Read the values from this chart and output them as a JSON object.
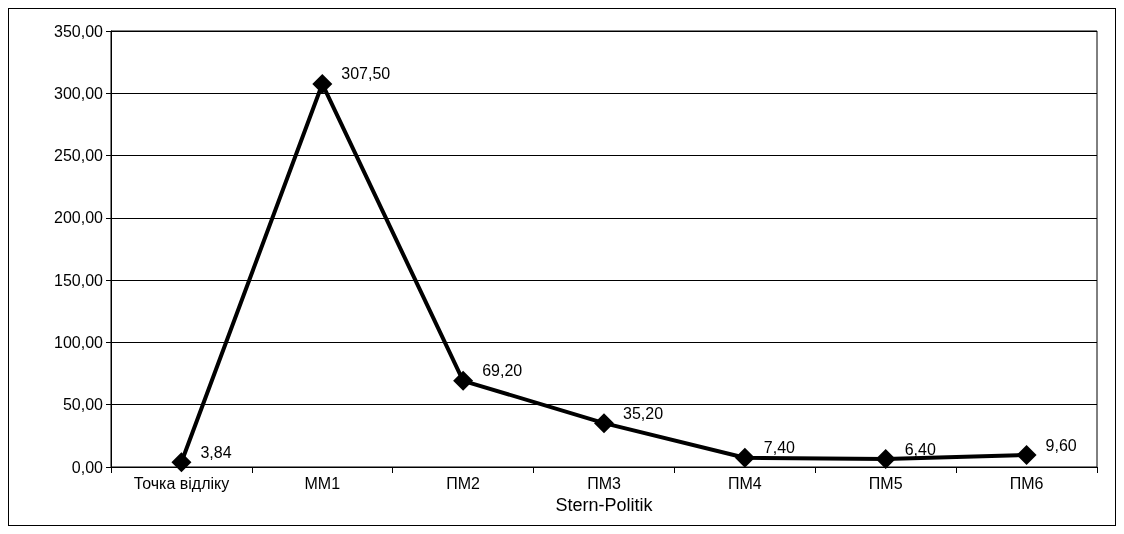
{
  "chart_data": {
    "type": "line",
    "xlabel": "Stern-Politik",
    "categories": [
      "Точка відліку",
      "ММ1",
      "ПМ2",
      "ПМ3",
      "ПМ4",
      "ПМ5",
      "ПМ6"
    ],
    "series": [
      {
        "color": "#000000",
        "values": [
          3.84,
          307.5,
          69.2,
          35.2,
          7.4,
          6.4,
          9.6
        ],
        "value_labels": [
          "3,84",
          "307,50",
          "69,20",
          "35,20",
          "7,40",
          "6,40",
          "9,60"
        ]
      }
    ],
    "ylim": [
      0,
      350
    ],
    "yticks": [
      {
        "value": 0,
        "label": "0,00"
      },
      {
        "value": 50,
        "label": "50,00"
      },
      {
        "value": 100,
        "label": "100,00"
      },
      {
        "value": 150,
        "label": "150,00"
      },
      {
        "value": 200,
        "label": "200,00"
      },
      {
        "value": 250,
        "label": "250,00"
      },
      {
        "value": 300,
        "label": "300,00"
      },
      {
        "value": 350,
        "label": "350,00"
      }
    ],
    "grid": "y",
    "marker": "diamond",
    "line_style": "solid"
  }
}
